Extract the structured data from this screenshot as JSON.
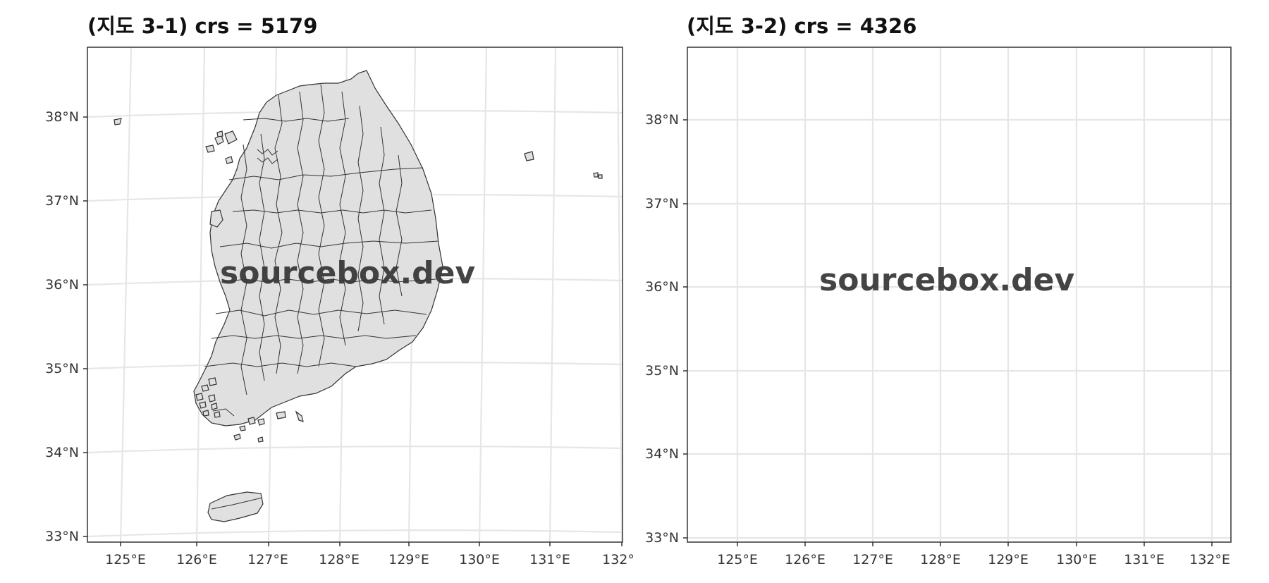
{
  "panels": [
    {
      "title": "(지도 3-1) crs = 5179",
      "lon_ticks": [
        "125°E",
        "126°E",
        "127°E",
        "128°E",
        "129°E",
        "130°E",
        "131°E",
        "132°E"
      ],
      "lat_ticks": [
        "33°N",
        "34°N",
        "35°N",
        "36°N",
        "37°N",
        "38°N"
      ]
    },
    {
      "title": "(지도 3-2) crs = 4326",
      "lon_ticks": [
        "125°E",
        "126°E",
        "127°E",
        "128°E",
        "129°E",
        "130°E",
        "131°E",
        "132°E"
      ],
      "lat_ticks": [
        "33°N",
        "34°N",
        "35°N",
        "36°N",
        "37°N",
        "38°N"
      ]
    }
  ],
  "watermark": "sourcebox.dev",
  "colors": {
    "land_fill": "#e0e0e0",
    "border": "#333333",
    "grid": "#e6e6e6",
    "frame": "#333333"
  }
}
